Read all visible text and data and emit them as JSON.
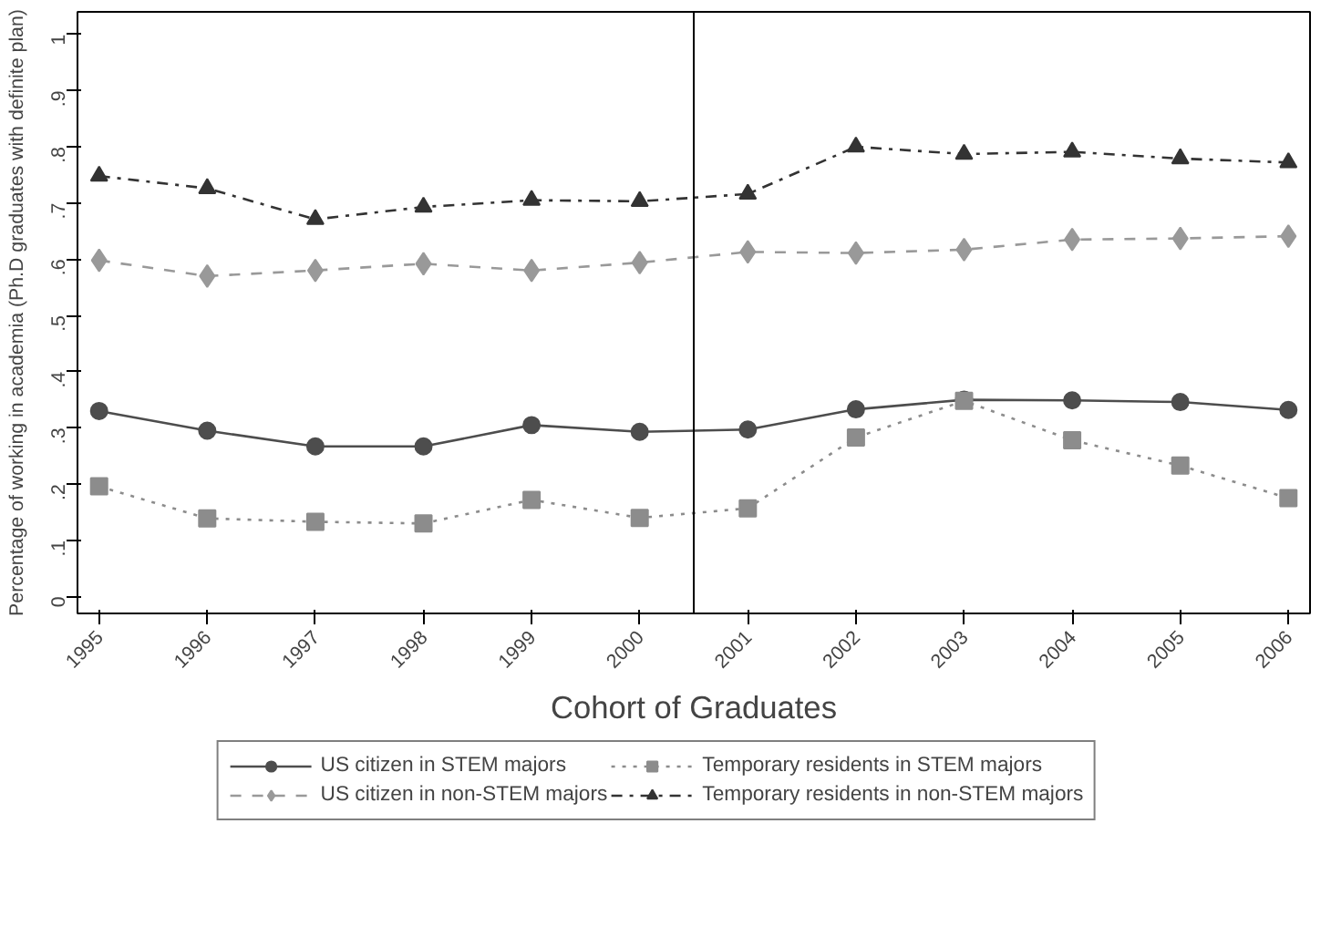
{
  "chart_data": {
    "type": "line",
    "xlabel": "Cohort of Graduates",
    "ylabel": "Percentage of working in academia (Ph.D graduates with definite plan)",
    "x": [
      1995,
      1996,
      1997,
      1998,
      1999,
      2000,
      2001,
      2002,
      2003,
      2004,
      2005,
      2006
    ],
    "xlim": [
      1994.8,
      2006.2
    ],
    "xticks": [
      1995,
      1996,
      1997,
      1998,
      1999,
      2000,
      2001,
      2002,
      2003,
      2004,
      2005,
      2006
    ],
    "ylim": [
      -0.03,
      1.04
    ],
    "yticks": [
      {
        "value": 0,
        "label": "0"
      },
      {
        "value": 0.1,
        "label": ".1"
      },
      {
        "value": 0.2,
        "label": ".2"
      },
      {
        "value": 0.3,
        "label": ".3"
      },
      {
        "value": 0.4,
        "label": ".4"
      },
      {
        "value": 0.5,
        "label": ".5"
      },
      {
        "value": 0.6,
        "label": ".6"
      },
      {
        "value": 0.7,
        "label": ".7"
      },
      {
        "value": 0.8,
        "label": ".8"
      },
      {
        "value": 0.9,
        "label": ".9"
      },
      {
        "value": 1,
        "label": "1"
      }
    ],
    "grid": false,
    "legend": "bottom",
    "ref_lines": [
      {
        "axis": "x",
        "value": 2000.5,
        "label": null,
        "color": "#000000",
        "line_style": "solid"
      }
    ],
    "series": [
      {
        "name": "US citizen in STEM majors",
        "color": "#4d4d4d",
        "marker": "circle",
        "line_style": "solid",
        "values": [
          0.33,
          0.295,
          0.267,
          0.267,
          0.305,
          0.293,
          0.297,
          0.333,
          0.35,
          0.349,
          0.346,
          0.332
        ]
      },
      {
        "name": "US citizen in non-STEM majors",
        "color": "#999999",
        "marker": "diamond",
        "line_style": "dashed",
        "values": [
          0.598,
          0.57,
          0.58,
          0.592,
          0.58,
          0.594,
          0.613,
          0.611,
          0.617,
          0.635,
          0.637,
          0.641
        ]
      },
      {
        "name": "Temporary residents in STEM majors",
        "color": "#8c8c8c",
        "marker": "square",
        "line_style": "dotted",
        "values": [
          0.196,
          0.139,
          0.133,
          0.13,
          0.172,
          0.14,
          0.157,
          0.283,
          0.348,
          0.278,
          0.233,
          0.175
        ]
      },
      {
        "name": "Temporary residents in non-STEM majors",
        "color": "#333333",
        "marker": "triangle",
        "line_style": "dashdot",
        "values": [
          0.748,
          0.726,
          0.671,
          0.693,
          0.705,
          0.703,
          0.716,
          0.8,
          0.787,
          0.791,
          0.779,
          0.772
        ]
      }
    ]
  }
}
